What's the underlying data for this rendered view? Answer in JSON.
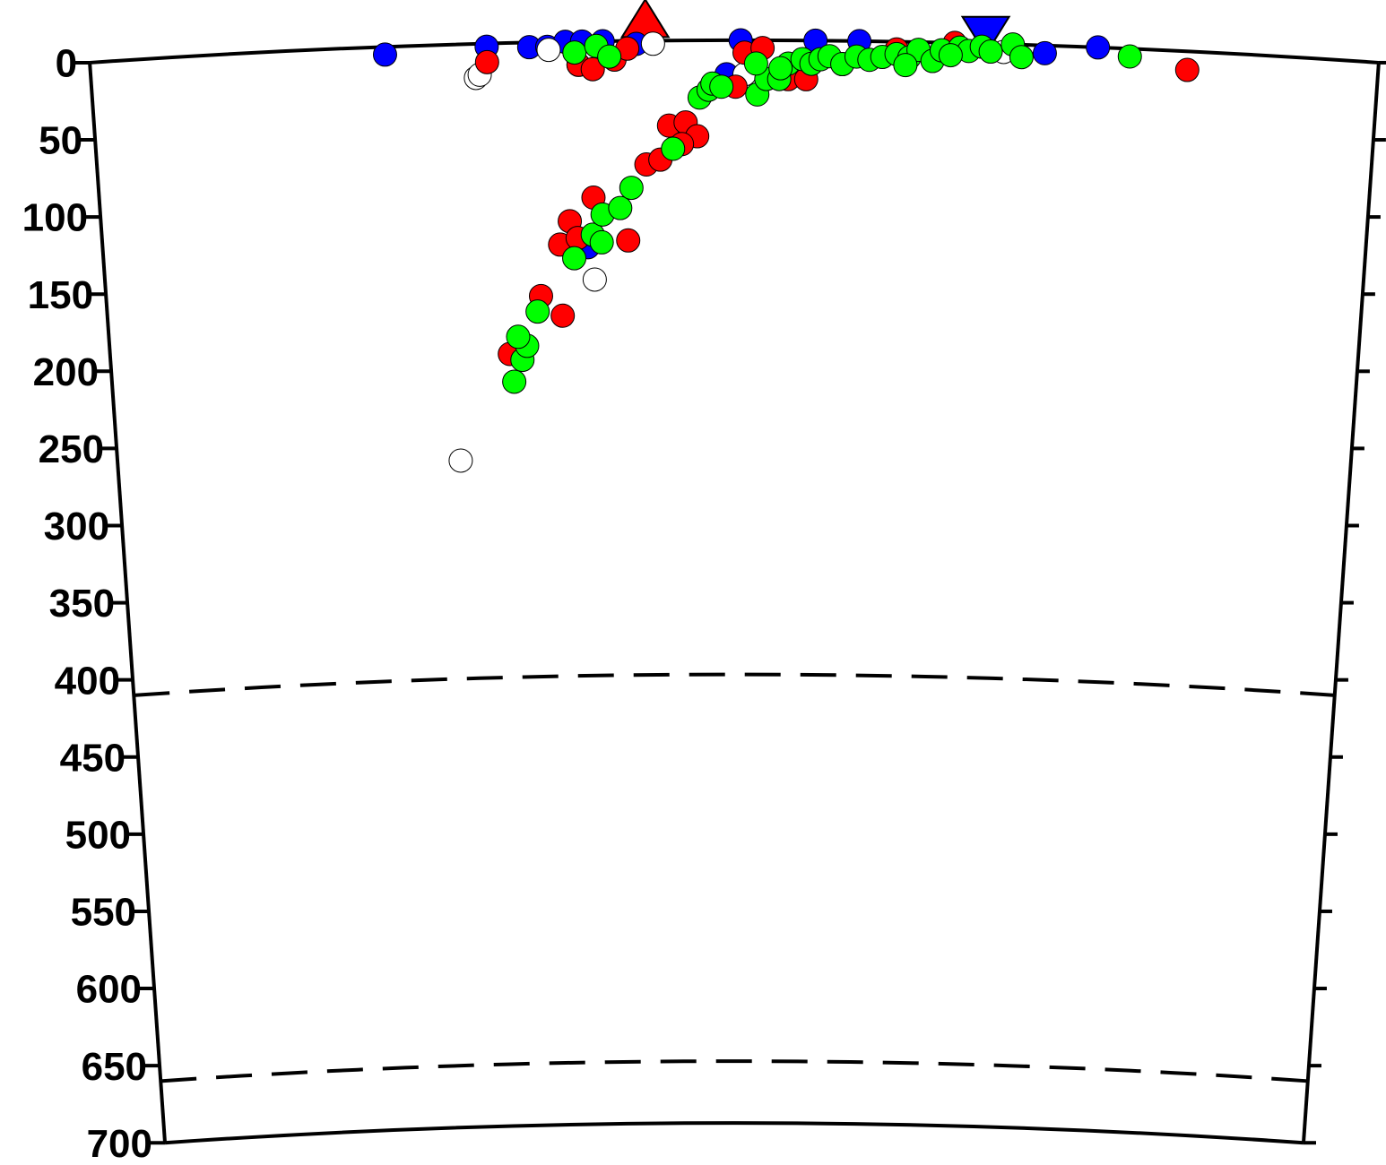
{
  "chart_data": {
    "type": "scatter",
    "xlim": [
      0,
      100
    ],
    "ylim": [
      0,
      700
    ],
    "yticks": [
      0,
      50,
      100,
      150,
      200,
      250,
      300,
      350,
      400,
      450,
      500,
      550,
      600,
      650,
      700
    ],
    "y_inverted": true,
    "reference_depths": [
      410,
      660
    ],
    "markers": [
      {
        "x": 43.1,
        "color": "#ff0000",
        "shape": "triangle-up"
      },
      {
        "x": 69.5,
        "color": "#0000ff",
        "shape": "triangle-down"
      }
    ],
    "series": [
      {
        "color": "#0000ff",
        "x": [
          22.9,
          30.8,
          34.1,
          35.5,
          36.9,
          37.9,
          38.2,
          39.8,
          42.4,
          49.4,
          50.5,
          56.3,
          59.7,
          74.1,
          78.2,
          38.4
        ],
        "values": [
          5,
          2,
          3,
          3,
          0,
          15,
          0,
          0,
          2,
          22,
          0,
          0,
          0,
          5,
          0,
          133
        ]
      },
      {
        "color": "#ffffff",
        "x": [
          27.8,
          38.9,
          29.9,
          30.2,
          35.6,
          43.7,
          50.8,
          70.9
        ],
        "values": [
          269,
          154,
          22,
          20,
          5,
          2,
          22,
          5
        ]
      },
      {
        "color": "#ff0000",
        "x": [
          32.0,
          34.6,
          36.3,
          36.2,
          37.0,
          37.6,
          38.9,
          41.6,
          43.1,
          44.2,
          44.9,
          46.2,
          47.1,
          45.9,
          30.8,
          37.9,
          39.0,
          40.7,
          41.7,
          50.8,
          52.2,
          54.2,
          55.6,
          58.4,
          62.6,
          67.1,
          85.2,
          50.1
        ],
        "values": [
          201,
          164,
          177,
          131,
          116,
          127,
          101,
          129,
          80,
          77,
          55,
          53,
          62,
          67,
          12,
          15,
          18,
          12,
          5,
          8,
          5,
          25,
          25,
          15,
          5,
          0,
          12,
          30
        ]
      },
      {
        "color": "#00ff00",
        "x": [
          32.3,
          33.0,
          33.4,
          32.7,
          34.3,
          37.3,
          38.8,
          39.5,
          39.6,
          41.0,
          41.9,
          45.2,
          47.3,
          48.0,
          48.3,
          49.0,
          51.8,
          52.5,
          53.5,
          54.2,
          55.3,
          56.0,
          56.7,
          57.4,
          58.4,
          59.5,
          60.5,
          61.5,
          62.6,
          63.6,
          64.3,
          65.4,
          66.1,
          67.5,
          68.2,
          69.2,
          69.9,
          71.6,
          72.3,
          80.7,
          37.6,
          39.3,
          40.3,
          51.7,
          53.6,
          63.3,
          66.8
        ],
        "values": [
          219,
          205,
          196,
          190,
          174,
          140,
          125,
          130,
          112,
          108,
          95,
          70,
          37,
          32,
          28,
          30,
          35,
          25,
          25,
          15,
          12,
          15,
          12,
          10,
          15,
          10,
          12,
          10,
          8,
          10,
          5,
          12,
          5,
          3,
          5,
          2,
          5,
          0,
          8,
          5,
          7,
          3,
          10,
          15,
          18,
          15,
          8
        ]
      }
    ]
  }
}
